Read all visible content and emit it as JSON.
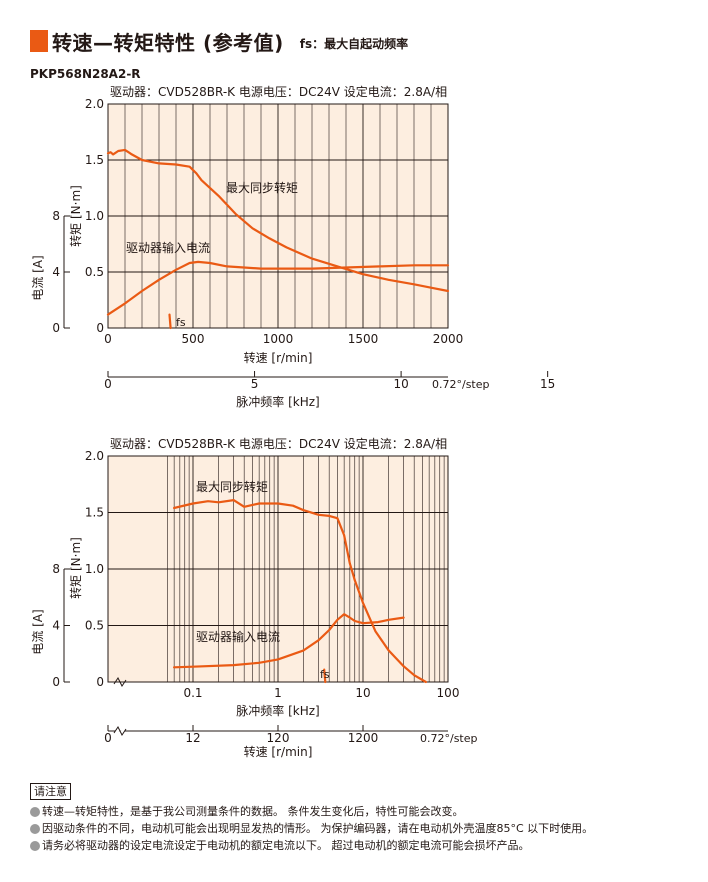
{
  "header": {
    "title": "转速—转矩特性 (参考值)",
    "fs_note": "fs：最大自起动频率",
    "model": "PKP568N28A2-R"
  },
  "colors": {
    "accent": "#ea5a14",
    "plot_bg": "#fdeee0",
    "grid": "#231815"
  },
  "chart_data": [
    {
      "type": "line",
      "info": "驱动器：CVD528BR-K  电源电压：DC24V  设定电流：2.8A/相",
      "xlabel": "转速 [r/min]",
      "x_ticks": [
        "0",
        "500",
        "1000",
        "1500",
        "2000"
      ],
      "xlim": [
        0,
        2000
      ],
      "ylabel": "转矩 [N·m]",
      "y_ticks": [
        "0",
        "0.5",
        "1.0",
        "1.5",
        "2.0"
      ],
      "ylim": [
        0,
        2.0
      ],
      "y2label": "电流 [A]",
      "y2_ticks": [
        "0",
        "4",
        "8"
      ],
      "x2label": "脉冲频率 [kHz]",
      "x2_ticks": [
        "0",
        "5",
        "10",
        "15"
      ],
      "x2_unit": "0.72°/step",
      "grid": true,
      "series": [
        {
          "name": "最大同步转矩",
          "x": [
            0,
            15,
            30,
            60,
            100,
            140,
            200,
            300,
            400,
            480,
            520,
            550,
            650,
            750,
            850,
            950,
            1050,
            1200,
            1350,
            1500,
            1650,
            1800,
            1900,
            2000
          ],
          "y": [
            1.56,
            1.57,
            1.55,
            1.58,
            1.59,
            1.55,
            1.5,
            1.47,
            1.46,
            1.44,
            1.38,
            1.32,
            1.18,
            1.02,
            0.89,
            0.8,
            0.72,
            0.62,
            0.55,
            0.48,
            0.43,
            0.39,
            0.36,
            0.33
          ]
        },
        {
          "name": "驱动器输入电流",
          "x": [
            0,
            100,
            200,
            300,
            400,
            480,
            530,
            600,
            700,
            800,
            900,
            1000,
            1200,
            1400,
            1600,
            1800,
            2000
          ],
          "y": [
            0.12,
            0.22,
            0.33,
            0.43,
            0.52,
            0.58,
            0.59,
            0.58,
            0.55,
            0.54,
            0.53,
            0.53,
            0.53,
            0.54,
            0.55,
            0.56,
            0.56
          ]
        },
        {
          "name": "fs",
          "x": [
            362,
            368
          ],
          "y": [
            0.12,
            0.0
          ]
        }
      ]
    },
    {
      "type": "line",
      "info": "驱动器：CVD528BR-K  电源电压：DC24V  设定电流：2.8A/相",
      "xlabel": "脉冲频率 [kHz]",
      "x_ticks": [
        "0.1",
        "1",
        "10",
        "100"
      ],
      "xlim": [
        0.01,
        100
      ],
      "xscale": "log",
      "ylabel": "转矩 [N·m]",
      "y_ticks": [
        "0",
        "0.5",
        "1.0",
        "1.5",
        "2.0"
      ],
      "ylim": [
        0,
        2.0
      ],
      "y2label": "电流 [A]",
      "y2_ticks": [
        "0",
        "4",
        "8"
      ],
      "x2label": "转速 [r/min]",
      "x2_ticks": [
        "0",
        "12",
        "120",
        "1200"
      ],
      "x2_unit": "0.72°/step",
      "grid": true,
      "series": [
        {
          "name": "最大同步转矩",
          "x": [
            0.06,
            0.1,
            0.15,
            0.2,
            0.3,
            0.4,
            0.6,
            1.0,
            1.5,
            2.0,
            3.0,
            4.0,
            5.0,
            6.0,
            7.0,
            8.0,
            10.0,
            14.0,
            20.0,
            30.0,
            40.0,
            55.0
          ],
          "y": [
            1.54,
            1.58,
            1.6,
            1.59,
            1.61,
            1.55,
            1.58,
            1.58,
            1.56,
            1.52,
            1.48,
            1.47,
            1.45,
            1.3,
            1.05,
            0.9,
            0.7,
            0.45,
            0.28,
            0.14,
            0.06,
            0.0
          ]
        },
        {
          "name": "驱动器输入电流",
          "x": [
            0.06,
            0.1,
            0.3,
            0.6,
            1.0,
            2.0,
            3.0,
            4.0,
            5.0,
            6.0,
            7.0,
            8.0,
            10.0,
            15.0,
            20.0,
            30.0
          ],
          "y": [
            0.13,
            0.135,
            0.15,
            0.17,
            0.2,
            0.28,
            0.37,
            0.46,
            0.55,
            0.6,
            0.57,
            0.54,
            0.52,
            0.53,
            0.55,
            0.57
          ]
        },
        {
          "name": "fs",
          "x": [
            3.5,
            3.6
          ],
          "y": [
            0.11,
            0.0
          ]
        }
      ]
    }
  ],
  "notes": {
    "title": "请注意",
    "items": [
      "转速—转矩特性，是基于我公司测量条件的数据。 条件发生变化后，特性可能会改变。",
      "因驱动条件的不同，电动机可能会出现明显发热的情形。 为保护编码器，请在电动机外壳温度85°C 以下时使用。",
      "请务必将驱动器的设定电流设定于电动机的额定电流以下。 超过电动机的额定电流可能会损坏产品。"
    ]
  }
}
